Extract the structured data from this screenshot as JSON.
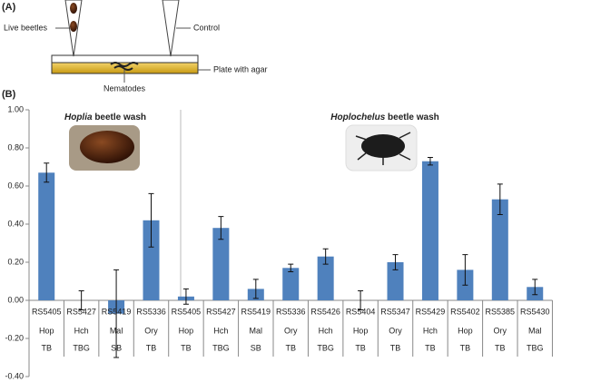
{
  "panel_a": {
    "label": "(A)",
    "live_beetles": "Live beetles",
    "control": "Control",
    "plate": "Plate with agar",
    "nematodes": "Nematodes"
  },
  "chart_data": {
    "type": "bar",
    "panel_label": "(B)",
    "annotations": [
      {
        "italic": "Hoplia",
        "text": " beetle wash"
      },
      {
        "italic": "Hoplochelus",
        "text": " beetle wash"
      }
    ],
    "categories": [
      "RS5405",
      "RS5427",
      "RS5419",
      "RS5336",
      "RS5405",
      "RS5427",
      "RS5419",
      "RS5336",
      "RS5426",
      "RS5404",
      "RS5347",
      "RS5429",
      "RS5402",
      "RS5385",
      "RS5430"
    ],
    "hosts": [
      "Hop",
      "Hch",
      "Mal",
      "Ory",
      "Hop",
      "Hch",
      "Mal",
      "Ory",
      "Hch",
      "Hop",
      "Ory",
      "Hch",
      "Hop",
      "Ory",
      "Mal"
    ],
    "methods": [
      "TB",
      "TBG",
      "SB",
      "TB",
      "TB",
      "TBG",
      "SB",
      "TB",
      "TBG",
      "TB",
      "TB",
      "TB",
      "TB",
      "TB",
      "TBG"
    ],
    "values": [
      0.67,
      0.0,
      -0.07,
      0.42,
      0.02,
      0.38,
      0.06,
      0.17,
      0.23,
      0.0,
      0.2,
      0.73,
      0.16,
      0.53,
      0.07
    ],
    "errors": [
      0.05,
      0.05,
      0.23,
      0.14,
      0.04,
      0.06,
      0.05,
      0.02,
      0.04,
      0.05,
      0.04,
      0.02,
      0.08,
      0.08,
      0.04
    ],
    "color": "#4f81bd",
    "ylim": [
      -0.4,
      1.0
    ],
    "yticks": [
      {
        "value": -0.4,
        "label": "-0.40"
      },
      {
        "value": -0.2,
        "label": "-0.20"
      },
      {
        "value": 0,
        "label": "0.00"
      },
      {
        "value": 0.2,
        "label": "0.20"
      },
      {
        "value": 0.4,
        "label": "0.40"
      },
      {
        "value": 0.6,
        "label": "0.60"
      },
      {
        "value": 0.8,
        "label": "0.80"
      },
      {
        "value": 1.0,
        "label": "1.00"
      }
    ]
  }
}
